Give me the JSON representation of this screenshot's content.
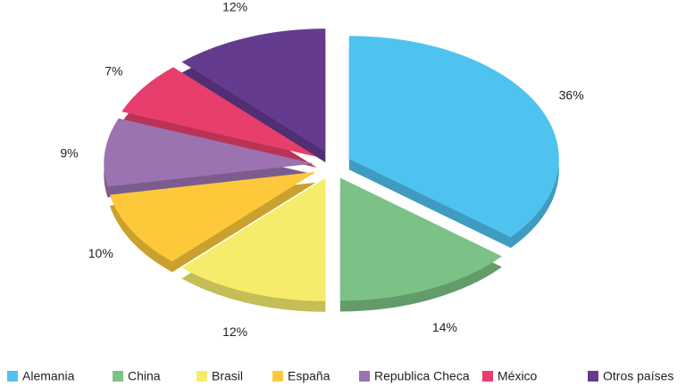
{
  "chart_data": {
    "type": "pie",
    "categories": [
      "Alemania",
      "China",
      "Brasil",
      "España",
      "Republica Checa",
      "México",
      "Otros países"
    ],
    "values": [
      36,
      14,
      12,
      10,
      9,
      7,
      12
    ],
    "value_labels": [
      "36%",
      "14%",
      "12%",
      "10%",
      "9%",
      "7%",
      "12%"
    ],
    "colors": [
      "#4fc3f0",
      "#7cc286",
      "#f6ec6b",
      "#fdc93a",
      "#9b73b1",
      "#e83e6c",
      "#653b8f"
    ],
    "legend": "bottom"
  }
}
